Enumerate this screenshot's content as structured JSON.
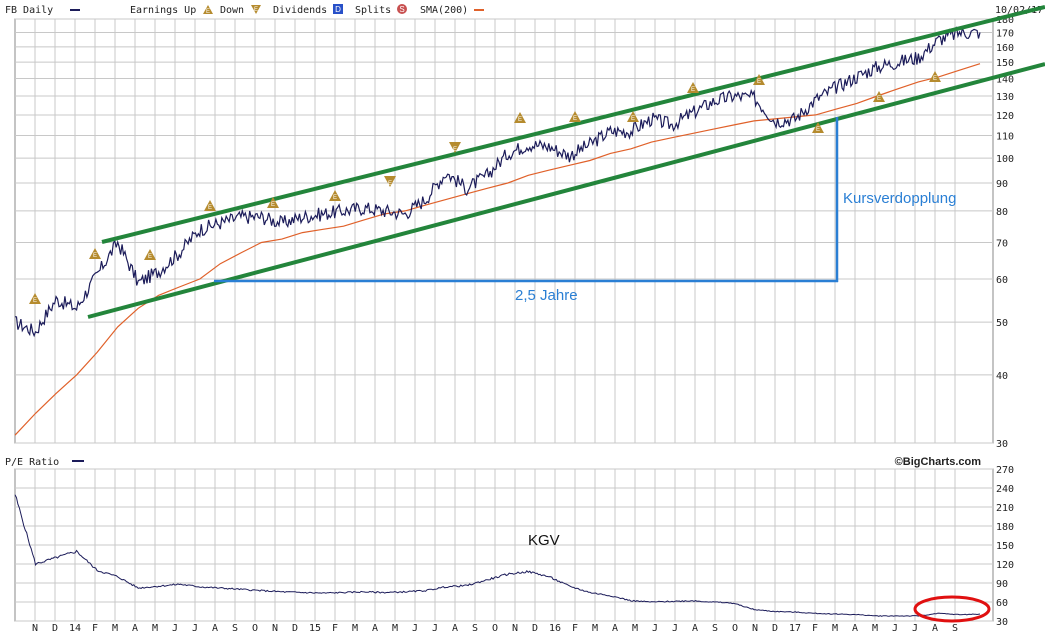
{
  "header": {
    "symbol_label": "FB Daily",
    "earnings_up_label": "Earnings Up",
    "down_label": "Down",
    "dividends_label": "Dividends",
    "splits_label": "Splits",
    "sma_label": "SMA(200)",
    "date_label": "10/02/17",
    "dividend_glyph": "D",
    "split_glyph": "S",
    "earnings_glyph": "E"
  },
  "lower_panel": {
    "label": "P/E Ratio",
    "credit": "©BigCharts.com"
  },
  "annotations": {
    "kursverdopplung": "Kursverdopplung",
    "jahre": "2,5 Jahre",
    "kgv": "KGV"
  },
  "colors": {
    "price": "#1c1c5a",
    "sma": "#e0612a",
    "channel": "#23853b",
    "annotation_blue": "#2a7fd4",
    "earnings_marker": "#b58b2e",
    "grid": "#c8c8c8",
    "highlight_circle": "#e01010",
    "dividend_badge": "#2850c8",
    "split_badge": "#c85050"
  },
  "x_axis_labels": [
    "N",
    "D",
    "14",
    "F",
    "M",
    "A",
    "M",
    "J",
    "J",
    "A",
    "S",
    "O",
    "N",
    "D",
    "15",
    "F",
    "M",
    "A",
    "M",
    "J",
    "J",
    "A",
    "S",
    "O",
    "N",
    "D",
    "16",
    "F",
    "M",
    "A",
    "M",
    "J",
    "J",
    "A",
    "S",
    "O",
    "N",
    "D",
    "17",
    "F",
    "M",
    "A",
    "M",
    "J",
    "J",
    "A",
    "S"
  ],
  "chart_data": [
    {
      "type": "line",
      "title": "FB Daily",
      "scale": "log",
      "ylim": [
        30,
        180
      ],
      "yticks": [
        30,
        40,
        50,
        60,
        70,
        80,
        90,
        100,
        110,
        120,
        130,
        140,
        150,
        160,
        170,
        180
      ],
      "grid": true,
      "x": [
        "2013-10",
        "2013-11",
        "2013-12",
        "2014-01",
        "2014-02",
        "2014-03",
        "2014-04",
        "2014-05",
        "2014-06",
        "2014-07",
        "2014-08",
        "2014-09",
        "2014-10",
        "2014-11",
        "2014-12",
        "2015-01",
        "2015-02",
        "2015-03",
        "2015-04",
        "2015-05",
        "2015-06",
        "2015-07",
        "2015-08",
        "2015-09",
        "2015-10",
        "2015-11",
        "2015-12",
        "2016-01",
        "2016-02",
        "2016-03",
        "2016-04",
        "2016-05",
        "2016-06",
        "2016-07",
        "2016-08",
        "2016-09",
        "2016-10",
        "2016-11",
        "2016-12",
        "2017-01",
        "2017-02",
        "2017-03",
        "2017-04",
        "2017-05",
        "2017-06",
        "2017-07",
        "2017-08",
        "2017-09"
      ],
      "series": [
        {
          "name": "FB Daily",
          "values": [
            50,
            48,
            55,
            53,
            61,
            70,
            59,
            62,
            67,
            74,
            76,
            78,
            78,
            76,
            78,
            79,
            80,
            81,
            80,
            79,
            84,
            94,
            88,
            93,
            102,
            106,
            105,
            101,
            106,
            112,
            112,
            118,
            115,
            121,
            127,
            130,
            129,
            117,
            118,
            128,
            135,
            141,
            147,
            150,
            153,
            165,
            170,
            170
          ]
        },
        {
          "name": "SMA(200)",
          "values": [
            31,
            34,
            37,
            40,
            44,
            49,
            53,
            56,
            58,
            60,
            64,
            67,
            70,
            71,
            73,
            74,
            75,
            77,
            79,
            80,
            82,
            84,
            86,
            88,
            90,
            93,
            95,
            97,
            99,
            102,
            104,
            107,
            109,
            111,
            113,
            115,
            117,
            118,
            119,
            120,
            123,
            126,
            130,
            134,
            138,
            141,
            145,
            149
          ]
        }
      ],
      "annotations": [
        "Kursverdopplung",
        "2,5 Jahre"
      ]
    },
    {
      "type": "line",
      "title": "P/E Ratio",
      "ylim": [
        30,
        270
      ],
      "yticks": [
        30,
        60,
        90,
        120,
        150,
        180,
        210,
        240,
        270
      ],
      "grid": true,
      "x": [
        "2013-10",
        "2013-11",
        "2013-12",
        "2014-01",
        "2014-02",
        "2014-03",
        "2014-04",
        "2014-05",
        "2014-06",
        "2014-07",
        "2014-08",
        "2014-09",
        "2014-10",
        "2014-11",
        "2014-12",
        "2015-01",
        "2015-02",
        "2015-03",
        "2015-04",
        "2015-05",
        "2015-06",
        "2015-07",
        "2015-08",
        "2015-09",
        "2015-10",
        "2015-11",
        "2015-12",
        "2016-01",
        "2016-02",
        "2016-03",
        "2016-04",
        "2016-05",
        "2016-06",
        "2016-07",
        "2016-08",
        "2016-09",
        "2016-10",
        "2016-11",
        "2016-12",
        "2017-01",
        "2017-02",
        "2017-03",
        "2017-04",
        "2017-05",
        "2017-06",
        "2017-07",
        "2017-08",
        "2017-09"
      ],
      "series": [
        {
          "name": "P/E Ratio",
          "values": [
            230,
            120,
            130,
            140,
            110,
            100,
            82,
            85,
            88,
            84,
            82,
            80,
            78,
            76,
            75,
            74,
            75,
            76,
            75,
            76,
            78,
            84,
            86,
            95,
            104,
            108,
            100,
            85,
            75,
            70,
            62,
            60,
            61,
            62,
            60,
            58,
            48,
            45,
            44,
            42,
            41,
            40,
            38,
            38,
            38,
            42,
            40,
            41
          ]
        }
      ],
      "annotations": [
        "KGV"
      ]
    }
  ]
}
